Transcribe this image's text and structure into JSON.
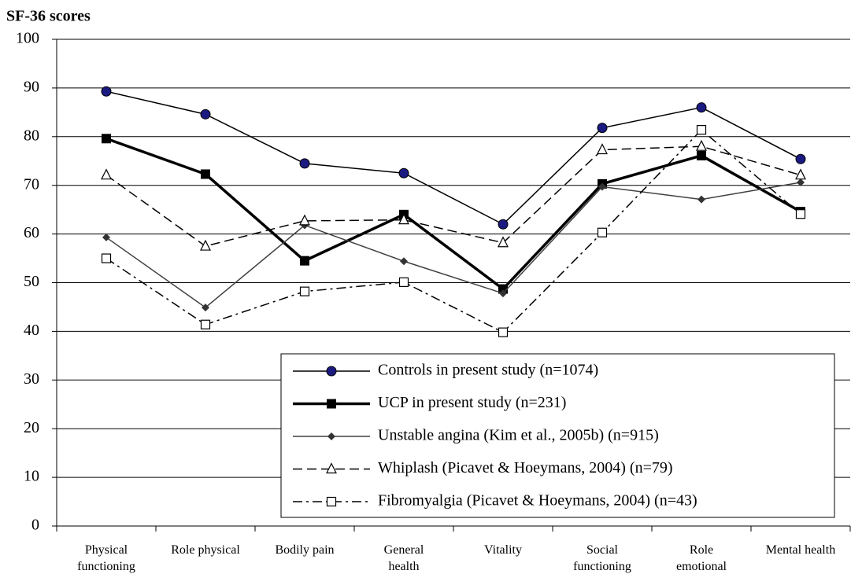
{
  "chart_data": {
    "type": "line",
    "title": "SF-36 scores",
    "categories": [
      "Physical functioning",
      "Role physical",
      "Bodily pain",
      "General health",
      "Vitality",
      "Social functioning",
      "Role emotional",
      "Mental health"
    ],
    "ylim": [
      0,
      100
    ],
    "yticks": [
      0,
      10,
      20,
      30,
      40,
      50,
      60,
      70,
      80,
      90,
      100
    ],
    "grid": true,
    "series": [
      {
        "name": "Controls in present study (n=1074)",
        "color": "#000000",
        "marker_color": "#1a1a80",
        "marker": "circle",
        "line_width": 1.5,
        "dash": "solid",
        "values": [
          89.3,
          84.6,
          74.5,
          72.5,
          62.0,
          81.8,
          86.0,
          75.4
        ]
      },
      {
        "name": "UCP in present study (n=231)",
        "color": "#000000",
        "marker_color": "#000000",
        "marker": "square",
        "line_width": 3.5,
        "dash": "solid",
        "values": [
          79.6,
          72.3,
          54.5,
          64.0,
          48.7,
          70.3,
          76.1,
          64.6
        ]
      },
      {
        "name": "Unstable angina (Kim et al., 2005b) (n=915)",
        "color": "#404040",
        "marker_color": "#333333",
        "marker": "diamond",
        "line_width": 1.5,
        "dash": "solid",
        "values": [
          59.3,
          44.9,
          61.8,
          54.4,
          47.8,
          69.7,
          67.1,
          70.6
        ]
      },
      {
        "name": "Whiplash (Picavet & Hoeymans, 2004) (n=79)",
        "color": "#000000",
        "marker_color": "#000000",
        "marker": "open-triangle",
        "line_width": 1.5,
        "dash": "dashed",
        "values": [
          72.1,
          57.5,
          62.7,
          62.9,
          58.2,
          77.3,
          78.0,
          72.1
        ]
      },
      {
        "name": "Fibromyalgia (Picavet & Hoeymans, 2004) (n=43)",
        "color": "#000000",
        "marker_color": "#000000",
        "marker": "open-square",
        "line_width": 1.5,
        "dash": "dashdot",
        "values": [
          55.0,
          41.4,
          48.2,
          50.1,
          39.8,
          60.3,
          81.4,
          64.1
        ]
      }
    ]
  }
}
